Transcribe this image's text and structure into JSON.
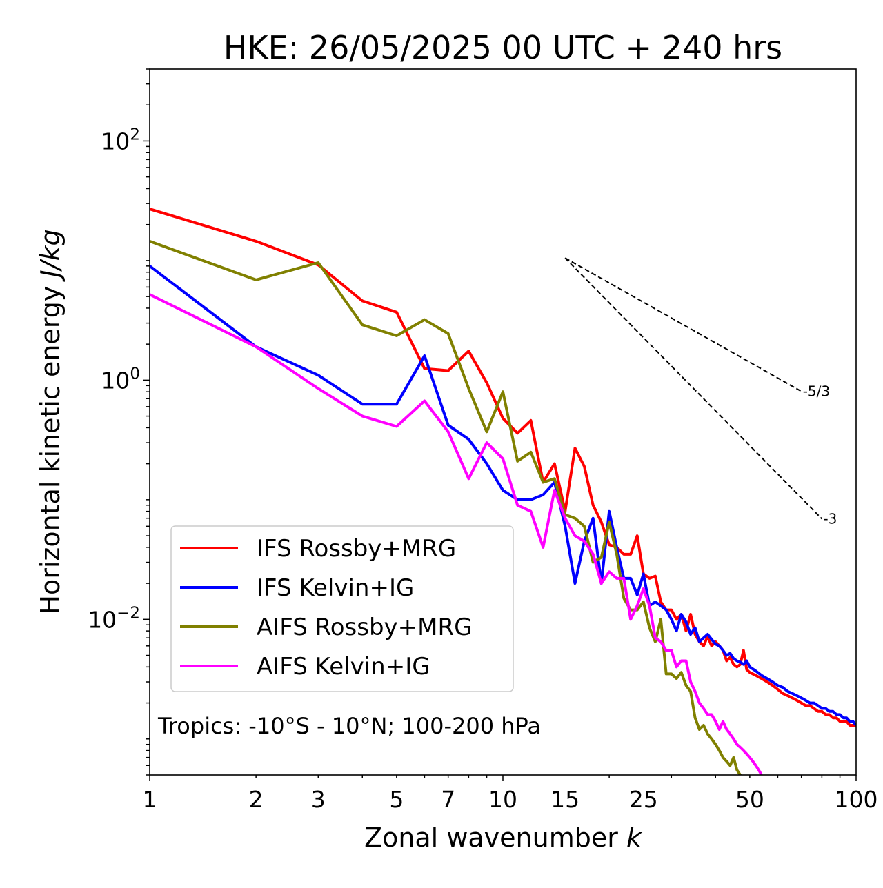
{
  "chart_data": {
    "type": "line",
    "title": "HKE: 26/05/2025 00 UTC + 240 hrs",
    "xlabel": "Zonal wavenumber",
    "xlabel_var": "k",
    "ylabel": "Horizontal kinetic energy",
    "ylabel_unit": "J/kg",
    "xscale": "log",
    "yscale": "log",
    "xlim": [
      1,
      100
    ],
    "ylim": [
      0.0005,
      400
    ],
    "xticks": [
      1,
      2,
      3,
      5,
      7,
      10,
      15,
      25,
      50,
      100
    ],
    "xtick_labels": [
      "1",
      "2",
      "3",
      "5",
      "7",
      "10",
      "15",
      "25",
      "50",
      "100"
    ],
    "yticks": [
      0.01,
      1,
      100
    ],
    "ytick_labels": [
      {
        "base": "10",
        "exp": "−2"
      },
      {
        "base": "10",
        "exp": "0"
      },
      {
        "base": "10",
        "exp": "2"
      }
    ],
    "annotation": "Tropics: -10°S - 10°N; 100-200 hPa",
    "legend_position": "lower-left",
    "reference_lines": [
      {
        "label": "-5/3",
        "slope": -1.6667,
        "x": [
          15,
          70
        ],
        "y_start": 10.5
      },
      {
        "label": "-3",
        "slope": -3,
        "x": [
          15,
          80
        ],
        "y_start": 10.5
      }
    ],
    "series": [
      {
        "name": "IFS Rossby+MRG",
        "color": "#ff0000",
        "x": [
          1,
          2,
          3,
          4,
          5,
          6,
          7,
          8,
          9,
          10,
          11,
          12,
          13,
          14,
          15,
          16,
          17,
          18,
          19,
          20,
          21,
          22,
          23,
          24,
          25,
          26,
          27,
          28,
          29,
          30,
          31,
          32,
          33,
          34,
          35,
          36,
          37,
          38,
          39,
          40,
          41,
          42,
          43,
          44,
          45,
          46,
          47,
          48,
          49,
          50,
          52,
          54,
          56,
          58,
          60,
          62,
          64,
          66,
          68,
          70,
          72,
          74,
          76,
          78,
          80,
          82,
          84,
          86,
          88,
          90,
          92,
          94,
          96,
          98,
          100
        ],
        "y": [
          27,
          14.5,
          9.2,
          4.6,
          3.7,
          1.25,
          1.2,
          1.75,
          0.95,
          0.48,
          0.36,
          0.46,
          0.14,
          0.2,
          0.08,
          0.27,
          0.19,
          0.09,
          0.065,
          0.042,
          0.04,
          0.035,
          0.035,
          0.05,
          0.024,
          0.022,
          0.023,
          0.014,
          0.012,
          0.012,
          0.01,
          0.011,
          0.008,
          0.011,
          0.0075,
          0.0065,
          0.006,
          0.0072,
          0.006,
          0.0065,
          0.006,
          0.0055,
          0.0045,
          0.0048,
          0.0042,
          0.004,
          0.0042,
          0.0055,
          0.0038,
          0.0036,
          0.0034,
          0.0032,
          0.003,
          0.0028,
          0.0026,
          0.0024,
          0.0023,
          0.0022,
          0.0021,
          0.002,
          0.0019,
          0.0019,
          0.0018,
          0.0017,
          0.0017,
          0.0016,
          0.0016,
          0.0015,
          0.0015,
          0.0014,
          0.0014,
          0.0014,
          0.0013,
          0.0013,
          0.0013
        ]
      },
      {
        "name": "IFS Kelvin+IG",
        "color": "#0000ff",
        "x": [
          1,
          2,
          3,
          4,
          5,
          6,
          7,
          8,
          9,
          10,
          11,
          12,
          13,
          14,
          15,
          16,
          17,
          18,
          19,
          20,
          21,
          22,
          23,
          24,
          25,
          26,
          27,
          28,
          29,
          30,
          31,
          32,
          33,
          34,
          35,
          36,
          37,
          38,
          39,
          40,
          41,
          42,
          43,
          44,
          45,
          46,
          47,
          48,
          49,
          50,
          52,
          54,
          56,
          58,
          60,
          62,
          64,
          66,
          68,
          70,
          72,
          74,
          76,
          78,
          80,
          82,
          84,
          86,
          88,
          90,
          92,
          94,
          96,
          98,
          100
        ],
        "y": [
          9,
          1.9,
          1.1,
          0.63,
          0.63,
          1.6,
          0.42,
          0.32,
          0.2,
          0.12,
          0.1,
          0.1,
          0.11,
          0.14,
          0.06,
          0.02,
          0.045,
          0.07,
          0.02,
          0.08,
          0.04,
          0.022,
          0.022,
          0.016,
          0.024,
          0.013,
          0.014,
          0.013,
          0.012,
          0.01,
          0.008,
          0.011,
          0.0095,
          0.0075,
          0.0085,
          0.0065,
          0.007,
          0.0075,
          0.0068,
          0.0062,
          0.006,
          0.0055,
          0.005,
          0.0052,
          0.0047,
          0.0045,
          0.0044,
          0.0042,
          0.0045,
          0.004,
          0.0037,
          0.0034,
          0.0032,
          0.003,
          0.0028,
          0.0027,
          0.0025,
          0.0024,
          0.0023,
          0.0022,
          0.0021,
          0.002,
          0.002,
          0.0019,
          0.0018,
          0.0018,
          0.0017,
          0.0017,
          0.0016,
          0.0016,
          0.0015,
          0.0015,
          0.0014,
          0.0014,
          0.0013
        ]
      },
      {
        "name": "AIFS Rossby+MRG",
        "color": "#808000",
        "x": [
          1,
          2,
          3,
          4,
          5,
          6,
          7,
          8,
          9,
          10,
          11,
          12,
          13,
          14,
          15,
          16,
          17,
          18,
          19,
          20,
          21,
          22,
          23,
          24,
          25,
          26,
          27,
          28,
          29,
          30,
          31,
          32,
          33,
          34,
          35,
          36,
          37,
          38,
          39,
          40,
          41,
          42,
          43,
          44,
          45,
          46,
          47,
          48
        ],
        "y": [
          14.5,
          6.9,
          9.6,
          2.9,
          2.35,
          3.2,
          2.45,
          0.85,
          0.37,
          0.8,
          0.21,
          0.25,
          0.14,
          0.15,
          0.075,
          0.07,
          0.06,
          0.03,
          0.033,
          0.065,
          0.035,
          0.015,
          0.012,
          0.012,
          0.014,
          0.0085,
          0.0065,
          0.01,
          0.0035,
          0.0035,
          0.0032,
          0.0036,
          0.0028,
          0.0025,
          0.0015,
          0.0012,
          0.0013,
          0.0011,
          0.001,
          0.0009,
          0.0008,
          0.0007,
          0.00065,
          0.0006,
          0.0007,
          0.00055,
          0.0005,
          0.00045
        ]
      },
      {
        "name": "AIFS Kelvin+IG",
        "color": "#ff00ff",
        "x": [
          1,
          2,
          3,
          4,
          5,
          6,
          7,
          8,
          9,
          10,
          11,
          12,
          13,
          14,
          15,
          16,
          17,
          18,
          19,
          20,
          21,
          22,
          23,
          24,
          25,
          26,
          27,
          28,
          29,
          30,
          31,
          32,
          33,
          34,
          35,
          36,
          37,
          38,
          39,
          40,
          41,
          42,
          43,
          44,
          45,
          46,
          47,
          48,
          49,
          50,
          51,
          52,
          53,
          54
        ],
        "y": [
          5.2,
          1.9,
          0.85,
          0.5,
          0.41,
          0.67,
          0.37,
          0.15,
          0.3,
          0.22,
          0.09,
          0.08,
          0.04,
          0.12,
          0.07,
          0.05,
          0.045,
          0.035,
          0.02,
          0.025,
          0.022,
          0.022,
          0.01,
          0.013,
          0.018,
          0.013,
          0.007,
          0.0065,
          0.0055,
          0.0055,
          0.004,
          0.0045,
          0.0045,
          0.003,
          0.0025,
          0.002,
          0.0018,
          0.0016,
          0.0016,
          0.0014,
          0.0012,
          0.0014,
          0.0012,
          0.0011,
          0.001,
          0.0009,
          0.00085,
          0.0008,
          0.00075,
          0.0007,
          0.00065,
          0.0006,
          0.00055,
          0.0005
        ]
      }
    ]
  }
}
